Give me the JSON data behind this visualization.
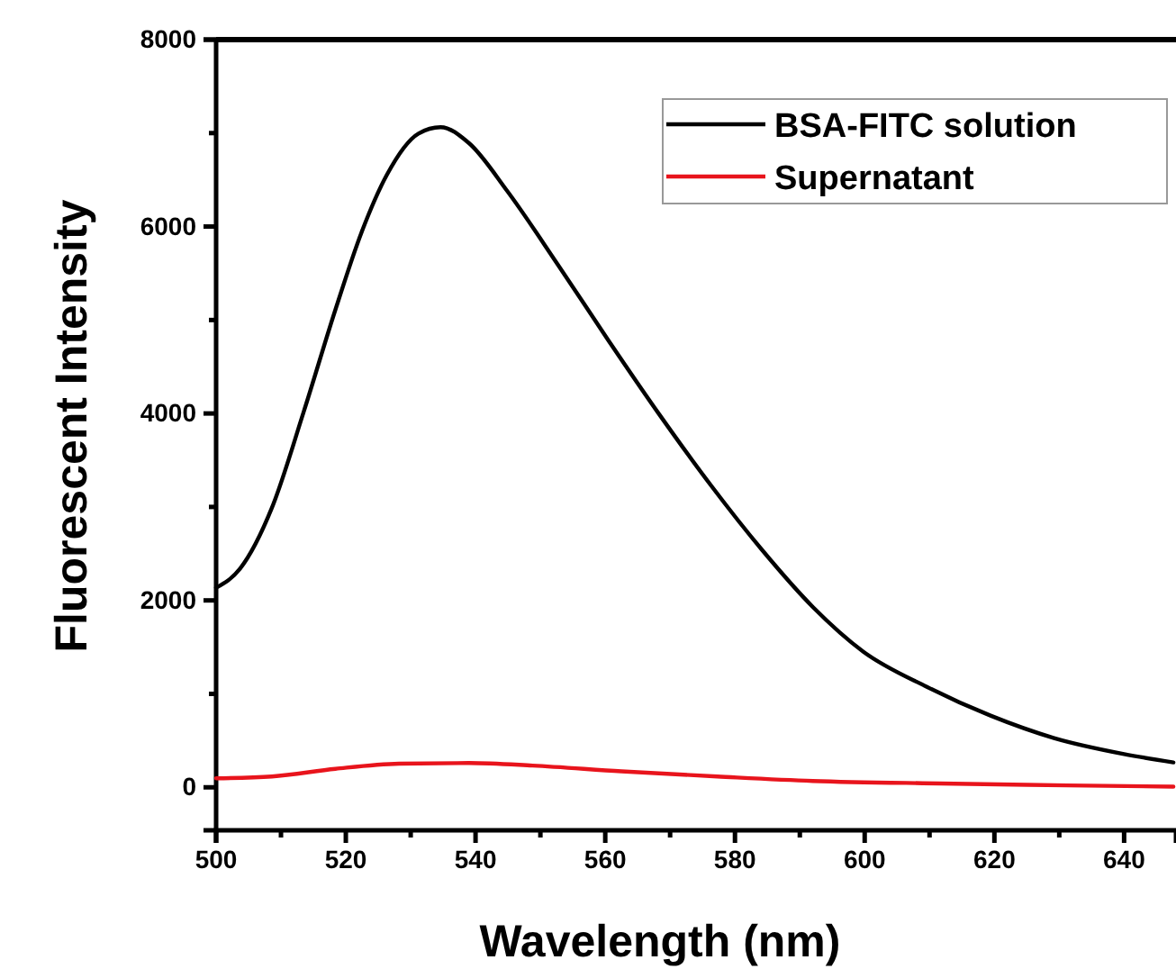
{
  "chart_data": {
    "type": "line",
    "xlabel": "Wavelength (nm)",
    "ylabel": "Fluorescent Intensity",
    "xlim": [
      500,
      648
    ],
    "ylim": [
      -460,
      8000
    ],
    "xticks": [
      500,
      {
        "value": 510,
        "label": null
      },
      520,
      {
        "value": 530,
        "label": null
      },
      540,
      {
        "value": 550,
        "label": null
      },
      560,
      {
        "value": 570,
        "label": null
      },
      580,
      {
        "value": 590,
        "label": null
      },
      600,
      {
        "value": 610,
        "label": null
      },
      620,
      {
        "value": 630,
        "label": null
      },
      640
    ],
    "yticks": [
      0,
      {
        "value": 1000,
        "label": null
      },
      2000,
      {
        "value": 3000,
        "label": null
      },
      4000,
      {
        "value": 5000,
        "label": null
      },
      6000,
      {
        "value": 7000,
        "label": null
      },
      8000
    ],
    "legend": "top right",
    "grid": false,
    "marker": "none",
    "line_style": "solid",
    "series": [
      {
        "name": "BSA-FITC solution",
        "color": "#000000",
        "x": [
          500,
          503.7,
          508.6,
          513.5,
          518.4,
          522.4,
          526.3,
          531.2,
          534.6,
          539,
          544.9,
          552.7,
          560.6,
          568.4,
          576.3,
          584.1,
          592,
          599.8,
          609.6,
          619.4,
          629.2,
          640,
          647.6
        ],
        "values": [
          2135,
          2340,
          2990,
          4017,
          5112,
          5934,
          6550,
          6995,
          7063,
          6892,
          6379,
          5592,
          4770,
          3983,
          3230,
          2546,
          1930,
          1451,
          1075,
          767,
          527,
          356,
          267
        ]
      },
      {
        "name": "Supernatant",
        "color": "#e8141c",
        "x": [
          500,
          508.6,
          518.4,
          528.2,
          539,
          548.8,
          562.5,
          577.3,
          592,
          611.6,
          631.2,
          647.6
        ],
        "values": [
          96,
          116,
          198,
          253,
          260,
          233,
          171,
          116,
          68,
          41,
          21,
          7
        ]
      }
    ]
  }
}
